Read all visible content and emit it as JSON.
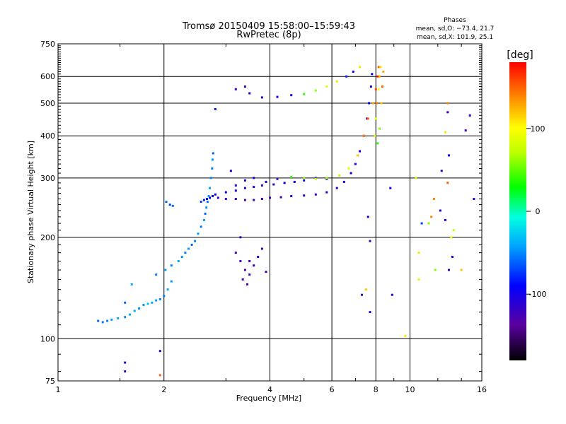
{
  "chart_data": {
    "type": "scatter",
    "title": "Tromsø 20150409 15:58:00–15:59:43",
    "subtitle": "RwPretec (8p)",
    "xlabel": "Frequency [MHz]",
    "ylabel": "Stationary phase Virtual Height [km]",
    "x_scale": "log",
    "y_scale": "log",
    "xlim": [
      1,
      16
    ],
    "ylim": [
      75,
      750
    ],
    "x_ticks": [
      1,
      2,
      4,
      6,
      8,
      10,
      16
    ],
    "y_ticks": [
      75,
      100,
      200,
      300,
      400,
      500,
      600,
      750
    ],
    "grid": true,
    "phases_box": {
      "title": "Phases",
      "line_o": "mean, sd,O: −73.4, 21.7",
      "line_x": "mean, sd,X: 101.9, 25.1"
    },
    "colorbar": {
      "label": "[deg]",
      "range": [
        -180,
        180
      ],
      "ticks": [
        100,
        0,
        -100
      ]
    },
    "series": [
      {
        "points": [
          [
            1.3,
            113,
            -60
          ],
          [
            1.34,
            112,
            -55
          ],
          [
            1.38,
            113,
            -50
          ],
          [
            1.42,
            114,
            -45
          ],
          [
            1.48,
            115,
            -40
          ],
          [
            1.55,
            116,
            -50
          ],
          [
            1.6,
            118,
            -35
          ],
          [
            1.65,
            121,
            -40
          ],
          [
            1.7,
            123,
            -50
          ],
          [
            1.75,
            126,
            -45
          ],
          [
            1.8,
            127,
            -30
          ],
          [
            1.85,
            128,
            -40
          ],
          [
            1.9,
            130,
            -45
          ],
          [
            1.95,
            131,
            -50
          ],
          [
            2.0,
            134,
            -55
          ],
          [
            2.05,
            140,
            -40
          ],
          [
            2.1,
            148,
            -45
          ],
          [
            1.55,
            128,
            -60
          ],
          [
            1.62,
            145,
            -40
          ],
          [
            1.9,
            155,
            -55
          ],
          [
            2.02,
            160,
            -45
          ],
          [
            2.1,
            165,
            -50
          ],
          [
            2.2,
            170,
            -40
          ],
          [
            2.25,
            175,
            -45
          ],
          [
            2.3,
            180,
            -55
          ],
          [
            2.35,
            185,
            -45
          ],
          [
            2.4,
            190,
            -60
          ],
          [
            2.45,
            195,
            -50
          ],
          [
            2.5,
            205,
            -40
          ],
          [
            2.55,
            215,
            -55
          ],
          [
            2.6,
            225,
            -45
          ],
          [
            2.62,
            235,
            -60
          ],
          [
            2.64,
            245,
            -50
          ],
          [
            2.66,
            255,
            -55
          ],
          [
            2.68,
            265,
            -40
          ],
          [
            2.7,
            280,
            -45
          ],
          [
            2.72,
            300,
            -50
          ],
          [
            2.74,
            320,
            -55
          ],
          [
            2.75,
            340,
            -45
          ],
          [
            2.76,
            355,
            -60
          ],
          [
            2.03,
            255,
            -60
          ],
          [
            2.08,
            250,
            -70
          ],
          [
            2.12,
            248,
            -55
          ],
          [
            2.55,
            255,
            -70
          ],
          [
            2.6,
            258,
            -80
          ],
          [
            2.65,
            260,
            -90
          ],
          [
            2.7,
            262,
            -95
          ],
          [
            2.75,
            265,
            -100
          ],
          [
            2.85,
            262,
            -110
          ],
          [
            3.0,
            260,
            -115
          ],
          [
            3.2,
            260,
            -120
          ],
          [
            3.4,
            258,
            -125
          ],
          [
            3.6,
            258,
            -120
          ],
          [
            3.8,
            260,
            -125
          ],
          [
            4.0,
            262,
            -130
          ],
          [
            4.3,
            263,
            -120
          ],
          [
            4.6,
            265,
            -115
          ],
          [
            5.0,
            266,
            -110
          ],
          [
            5.4,
            268,
            -120
          ],
          [
            5.8,
            272,
            -115
          ],
          [
            6.2,
            280,
            -105
          ],
          [
            6.5,
            292,
            -100
          ],
          [
            6.8,
            310,
            -95
          ],
          [
            7.0,
            330,
            -100
          ],
          [
            7.2,
            360,
            -105
          ],
          [
            7.4,
            400,
            -110
          ],
          [
            7.55,
            450,
            -100
          ],
          [
            7.65,
            500,
            -95
          ],
          [
            7.75,
            560,
            -100
          ],
          [
            7.8,
            610,
            -90
          ],
          [
            2.8,
            268,
            -90
          ],
          [
            3.0,
            272,
            -95
          ],
          [
            3.2,
            275,
            -100
          ],
          [
            3.4,
            280,
            -110
          ],
          [
            3.6,
            282,
            -105
          ],
          [
            3.8,
            285,
            -115
          ],
          [
            4.1,
            287,
            -110
          ],
          [
            4.4,
            290,
            -100
          ],
          [
            4.7,
            292,
            -95
          ],
          [
            5.0,
            295,
            -105
          ],
          [
            5.4,
            300,
            -100
          ],
          [
            5.8,
            298,
            -110
          ],
          [
            3.2,
            285,
            -110
          ],
          [
            3.4,
            295,
            -105
          ],
          [
            3.6,
            300,
            -100
          ],
          [
            3.9,
            292,
            -110
          ],
          [
            4.2,
            298,
            -115
          ],
          [
            4.6,
            302,
            40
          ],
          [
            5.0,
            300,
            60
          ],
          [
            5.4,
            298,
            75
          ],
          [
            5.8,
            300,
            60
          ],
          [
            6.3,
            305,
            70
          ],
          [
            6.7,
            320,
            90
          ],
          [
            7.1,
            350,
            120
          ],
          [
            7.4,
            400,
            140
          ],
          [
            7.6,
            450,
            150
          ],
          [
            7.85,
            500,
            130
          ],
          [
            8.0,
            550,
            160
          ],
          [
            8.1,
            600,
            170
          ],
          [
            8.15,
            640,
            150
          ],
          [
            8.25,
            640,
            110
          ],
          [
            8.2,
            600,
            125
          ],
          [
            8.15,
            550,
            100
          ],
          [
            8.05,
            500,
            140
          ],
          [
            8.0,
            450,
            90
          ],
          [
            7.95,
            400,
            80
          ],
          [
            8.3,
            500,
            120
          ],
          [
            8.35,
            560,
            150
          ],
          [
            8.4,
            620,
            130
          ],
          [
            8.2,
            420,
            60
          ],
          [
            8.1,
            380,
            40
          ],
          [
            3.2,
            180,
            -120
          ],
          [
            3.3,
            170,
            -125
          ],
          [
            3.4,
            160,
            -130
          ],
          [
            3.5,
            155,
            -120
          ],
          [
            3.6,
            165,
            -125
          ],
          [
            3.7,
            175,
            -115
          ],
          [
            3.8,
            185,
            -120
          ],
          [
            3.9,
            158,
            -125
          ],
          [
            3.35,
            150,
            -130
          ],
          [
            3.45,
            145,
            -120
          ],
          [
            3.3,
            200,
            -110
          ],
          [
            3.5,
            170,
            -125
          ],
          [
            3.2,
            550,
            -120
          ],
          [
            3.5,
            535,
            -110
          ],
          [
            3.8,
            520,
            -115
          ],
          [
            4.2,
            522,
            -100
          ],
          [
            4.6,
            528,
            -105
          ],
          [
            5.0,
            532,
            40
          ],
          [
            5.4,
            545,
            60
          ],
          [
            5.8,
            560,
            90
          ],
          [
            6.2,
            580,
            110
          ],
          [
            6.6,
            600,
            -80
          ],
          [
            6.9,
            620,
            -100
          ],
          [
            7.2,
            640,
            110
          ],
          [
            1.55,
            80,
            -120
          ],
          [
            1.55,
            85,
            -110
          ],
          [
            1.95,
            78,
            150
          ],
          [
            1.95,
            92,
            -110
          ],
          [
            2.8,
            480,
            -80
          ],
          [
            3.1,
            315,
            -100
          ],
          [
            3.4,
            560,
            -115
          ],
          [
            7.3,
            135,
            -120
          ],
          [
            7.6,
            230,
            -110
          ],
          [
            7.7,
            195,
            -120
          ],
          [
            7.7,
            120,
            -110
          ],
          [
            7.5,
            140,
            120
          ],
          [
            8.8,
            280,
            -100
          ],
          [
            8.9,
            135,
            -110
          ],
          [
            9.7,
            102,
            110
          ],
          [
            10.4,
            300,
            80
          ],
          [
            10.6,
            150,
            80
          ],
          [
            10.6,
            180,
            110
          ],
          [
            10.8,
            220,
            -70
          ],
          [
            11.3,
            220,
            60
          ],
          [
            11.7,
            260,
            140
          ],
          [
            12.2,
            240,
            -110
          ],
          [
            12.3,
            315,
            -120
          ],
          [
            12.6,
            225,
            -100
          ],
          [
            12.8,
            500,
            140
          ],
          [
            12.8,
            470,
            -120
          ],
          [
            12.9,
            350,
            -90
          ],
          [
            13.1,
            200,
            100
          ],
          [
            13.3,
            210,
            70
          ],
          [
            13.2,
            175,
            -110
          ],
          [
            12.8,
            290,
            150
          ],
          [
            12.9,
            160,
            -120
          ],
          [
            14.0,
            160,
            120
          ],
          [
            14.4,
            415,
            -120
          ],
          [
            14.8,
            460,
            -120
          ],
          [
            15.2,
            260,
            -110
          ],
          [
            12.6,
            410,
            110
          ],
          [
            11.8,
            160,
            60
          ],
          [
            11.5,
            230,
            140
          ]
        ]
      }
    ]
  }
}
